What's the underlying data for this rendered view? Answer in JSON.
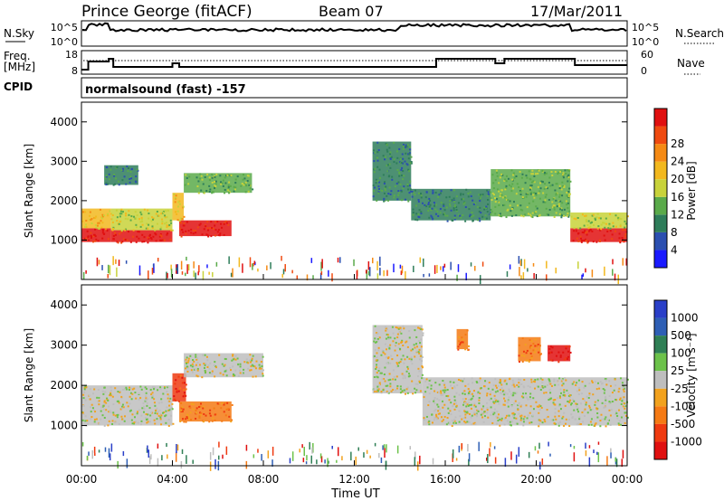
{
  "header": {
    "station": "Prince George (fitACF)",
    "beam": "Beam 07",
    "date": "17/Mar/2011",
    "program": "normalsound (fast) -157"
  },
  "panels": {
    "noise": {
      "left_label": "N.Sky",
      "right_label": "N.Search",
      "ticks": [
        "10^5",
        "10^0"
      ]
    },
    "freq": {
      "left_label_1": "Freq.",
      "left_label_2": "[MHz]",
      "right_label": "Nave",
      "left_ticks": [
        "18",
        "8"
      ],
      "right_ticks": [
        "60",
        "0"
      ]
    },
    "cpid_label": "CPID"
  },
  "axes": {
    "ylabel": "Slant Range [km]",
    "y_ticks": [
      "1000",
      "2000",
      "3000",
      "4000"
    ],
    "x_ticks": [
      "00:00",
      "04:00",
      "08:00",
      "12:00",
      "16:00",
      "20:00",
      "00:00"
    ],
    "xlabel": "Time UT"
  },
  "colorbars": {
    "power": {
      "label": "Power [dB]",
      "ticks": [
        "4",
        "8",
        "12",
        "16",
        "20",
        "24",
        "28"
      ],
      "colors": [
        "#1a1aff",
        "#2b4fb0",
        "#2e7d5a",
        "#5aaa4a",
        "#c8d23a",
        "#f2b81e",
        "#f58a14",
        "#ef4a10",
        "#e01010"
      ]
    },
    "velocity": {
      "label": "Velocity [m s⁻¹]",
      "ticks": [
        "1000",
        "500",
        "100",
        "25",
        "-25",
        "-100",
        "-500",
        "-1000"
      ],
      "colors": [
        "#2a3fc8",
        "#2e5fb5",
        "#2f7f55",
        "#6cc24a",
        "#bebebe",
        "#f2a21e",
        "#f57a14",
        "#ef3a10",
        "#e01010"
      ]
    }
  },
  "chart_data": [
    {
      "type": "heatmap",
      "title": "Power",
      "ylabel": "Slant Range [km]",
      "xlabel": "Time UT",
      "xlim": [
        0,
        24
      ],
      "ylim": [
        0,
        4500
      ],
      "colorbar": "Power [dB]",
      "regions": [
        {
          "t": [
            0.0,
            1.3
          ],
          "r": [
            950,
            1300
          ],
          "level": 8
        },
        {
          "t": [
            0.0,
            1.3
          ],
          "r": [
            1300,
            1800
          ],
          "level": 5
        },
        {
          "t": [
            1.3,
            4.0
          ],
          "r": [
            950,
            1250
          ],
          "level": 8
        },
        {
          "t": [
            1.3,
            4.0
          ],
          "r": [
            1250,
            1800
          ],
          "level": 4
        },
        {
          "t": [
            4.3,
            6.6
          ],
          "r": [
            1100,
            1500
          ],
          "level": 8
        },
        {
          "t": [
            4.0,
            4.5
          ],
          "r": [
            1500,
            2200
          ],
          "level": 5
        },
        {
          "t": [
            4.5,
            7.5
          ],
          "r": [
            2200,
            2700
          ],
          "level": 3
        },
        {
          "t": [
            1.0,
            2.5
          ],
          "r": [
            2400,
            2900
          ],
          "level": 2
        },
        {
          "t": [
            12.8,
            14.5
          ],
          "r": [
            2000,
            3500
          ],
          "level": 2
        },
        {
          "t": [
            14.5,
            18.0
          ],
          "r": [
            1500,
            2300
          ],
          "level": 2
        },
        {
          "t": [
            18.0,
            21.5
          ],
          "r": [
            1600,
            2800
          ],
          "level": 3
        },
        {
          "t": [
            21.5,
            24.0
          ],
          "r": [
            950,
            1300
          ],
          "level": 8
        },
        {
          "t": [
            21.5,
            24.0
          ],
          "r": [
            1300,
            1700
          ],
          "level": 4
        }
      ]
    },
    {
      "type": "heatmap",
      "title": "Velocity",
      "ylabel": "Slant Range [km]",
      "xlabel": "Time UT",
      "xlim": [
        0,
        24
      ],
      "ylim": [
        0,
        4500
      ],
      "colorbar": "Velocity [m s-1]",
      "regions": [
        {
          "t": [
            0.0,
            4.0
          ],
          "r": [
            1000,
            2000
          ],
          "level": 4
        },
        {
          "t": [
            4.3,
            6.6
          ],
          "r": [
            1100,
            1600
          ],
          "level": 6
        },
        {
          "t": [
            4.0,
            4.6
          ],
          "r": [
            1600,
            2300
          ],
          "level": 7
        },
        {
          "t": [
            4.5,
            8.0
          ],
          "r": [
            2200,
            2800
          ],
          "level": 4
        },
        {
          "t": [
            12.8,
            15.0
          ],
          "r": [
            1800,
            3500
          ],
          "level": 4
        },
        {
          "t": [
            15.0,
            24.0
          ],
          "r": [
            1000,
            2200
          ],
          "level": 4
        },
        {
          "t": [
            19.2,
            20.2
          ],
          "r": [
            2600,
            3200
          ],
          "level": 6
        },
        {
          "t": [
            20.5,
            21.5
          ],
          "r": [
            2600,
            3000
          ],
          "level": 8
        },
        {
          "t": [
            16.5,
            17.0
          ],
          "r": [
            2900,
            3400
          ],
          "level": 6
        }
      ]
    }
  ]
}
